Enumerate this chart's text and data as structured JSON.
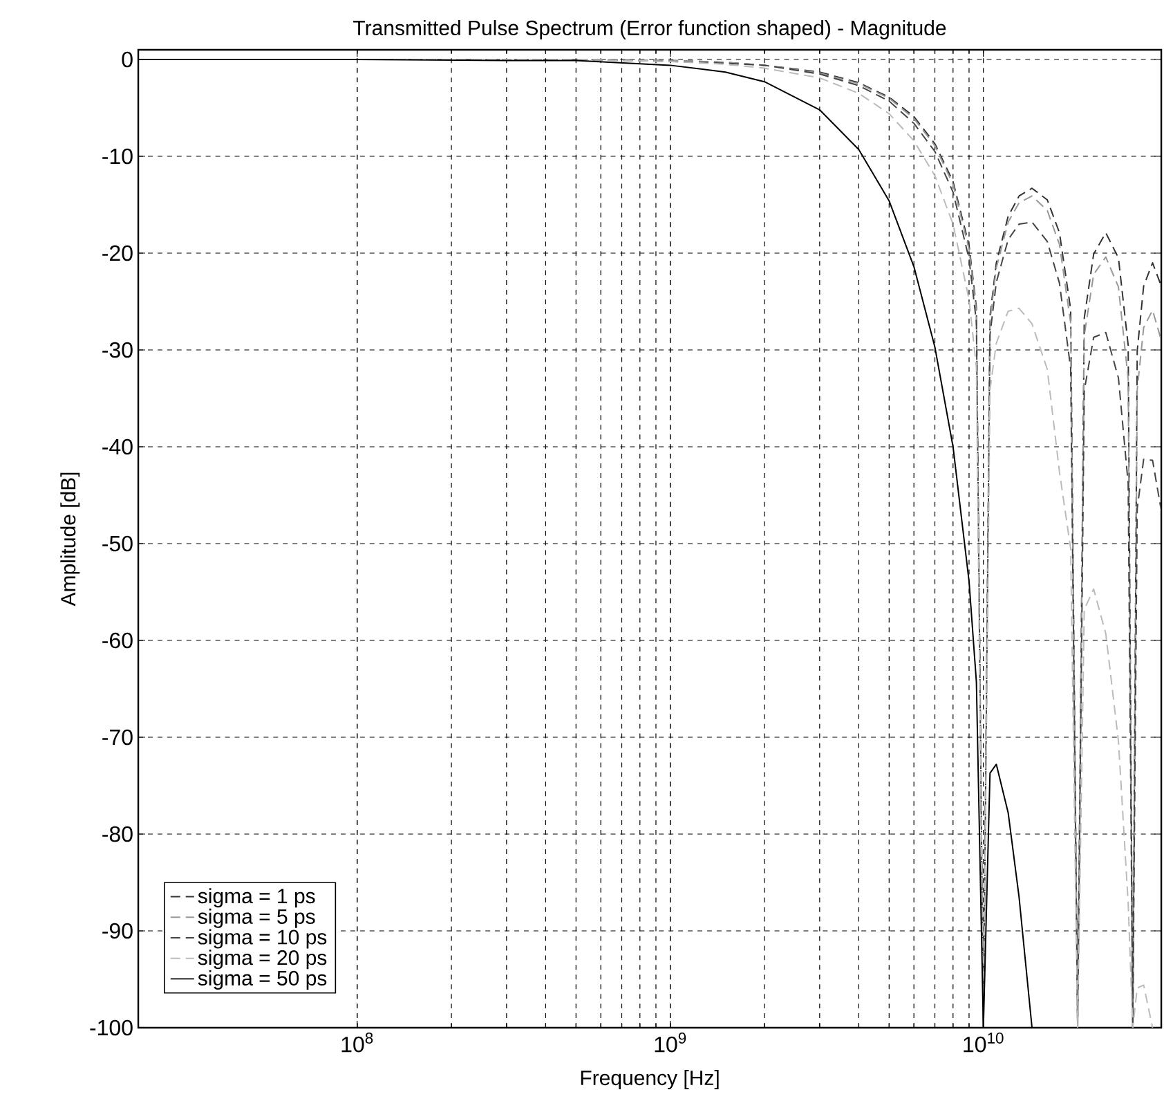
{
  "chart_data": {
    "type": "line",
    "title": "Transmitted Pulse Spectrum (Error function shaped) - Magnitude",
    "xlabel": "Frequency [Hz]",
    "ylabel": "Amplitude [dB]",
    "log": "x",
    "grid": true,
    "legend": "bottom left",
    "xlim": [
      20000000.0,
      37000000000.0
    ],
    "ylim": [
      -100,
      1
    ],
    "xticks": [
      {
        "value": 100000000.0,
        "label": "10$^{8}$"
      },
      {
        "value": 1000000000.0,
        "label": "10$^{9}$"
      },
      {
        "value": 10000000000.0,
        "label": "10$^{10}$"
      }
    ],
    "yticks": [
      -100,
      -90,
      -80,
      -70,
      -60,
      -50,
      -40,
      -30,
      -20,
      -10,
      0
    ],
    "x": [
      20000000.0,
      100000000.0,
      300000000.0,
      500000000.0,
      1000000000.0,
      1500000000.0,
      2000000000.0,
      3000000000.0,
      4000000000.0,
      5000000000.0,
      6000000000.0,
      7000000000.0,
      8000000000.0,
      9000000000.0,
      9500000000.0,
      10000000000.0,
      10500000000.0,
      11000000000.0,
      12000000000.0,
      13000000000.0,
      14300000000.0,
      16000000000.0,
      17500000000.0,
      19000000000.0,
      20000000000.0,
      21000000000.0,
      22500000000.0,
      24600000000.0,
      27000000000.0,
      29000000000.0,
      30000000000.0,
      31000000000.0,
      32500000000.0,
      34700000000.0,
      37000000000.0
    ],
    "series": [
      {
        "name": "sigma = 1 ps",
        "color": "#333333",
        "line_style": "dashed",
        "values": [
          0,
          0,
          0,
          0,
          -0.1,
          -0.3,
          -0.6,
          -1.3,
          -2.4,
          -3.9,
          -5.9,
          -8.7,
          -12.6,
          -19.2,
          -25.6,
          -100,
          -26.5,
          -21.0,
          -16.2,
          -14.1,
          -13.3,
          -14.5,
          -17.9,
          -25.8,
          -100,
          -26.7,
          -20.1,
          -17.9,
          -20.5,
          -29.5,
          -100,
          -30.1,
          -23.4,
          -21.0,
          -23.4
        ]
      },
      {
        "name": "sigma = 5 ps",
        "color": "#999999",
        "line_style": "dashed",
        "values": [
          0,
          0,
          0,
          0,
          -0.1,
          -0.3,
          -0.6,
          -1.4,
          -2.5,
          -4.0,
          -6.1,
          -8.9,
          -12.9,
          -19.6,
          -26.0,
          -100,
          -27.0,
          -21.5,
          -16.8,
          -14.8,
          -14.1,
          -15.6,
          -19.1,
          -27.2,
          -100,
          -28.5,
          -22.2,
          -20.4,
          -23.5,
          -33.0,
          -100,
          -34.1,
          -27.7,
          -25.9,
          -29.0
        ]
      },
      {
        "name": "sigma = 10 ps",
        "color": "#444444",
        "line_style": "dashed",
        "values": [
          0,
          0,
          0,
          0,
          -0.2,
          -0.4,
          -0.6,
          -1.5,
          -2.7,
          -4.3,
          -6.6,
          -9.5,
          -13.7,
          -20.6,
          -27.1,
          -100,
          -28.4,
          -23.0,
          -18.6,
          -17.0,
          -16.8,
          -18.8,
          -23.1,
          -31.9,
          -100,
          -34.2,
          -28.7,
          -28.2,
          -32.9,
          -43.8,
          -100,
          -46.4,
          -41.3,
          -41.4,
          -46.6
        ]
      },
      {
        "name": "sigma = 20 ps",
        "color": "#bbbbbb",
        "line_style": "dashed",
        "values": [
          0,
          0,
          0,
          0,
          -0.2,
          -0.5,
          -0.9,
          -1.9,
          -3.5,
          -5.6,
          -8.4,
          -12.0,
          -17.0,
          -24.8,
          -31.8,
          -100,
          -34.1,
          -29.3,
          -26.0,
          -25.7,
          -27.3,
          -32.0,
          -42.6,
          -50.5,
          -100,
          -56.8,
          -54.7,
          -59.3,
          -70.4,
          -87.1,
          -100,
          -95.9,
          -95.6,
          -100,
          null
        ]
      },
      {
        "name": "sigma = 50 ps",
        "color": "#000000",
        "line_style": "solid",
        "values": [
          0,
          0,
          -0.1,
          -0.1,
          -0.6,
          -1.3,
          -2.3,
          -5.2,
          -9.3,
          -14.6,
          -21.4,
          -29.7,
          -40.0,
          -53.9,
          -64.3,
          -100,
          -73.7,
          -72.8,
          -77.8,
          -86.5,
          -100,
          null,
          null,
          null,
          null,
          null,
          null,
          null,
          null,
          null,
          null,
          null,
          null,
          null,
          null
        ]
      }
    ]
  }
}
